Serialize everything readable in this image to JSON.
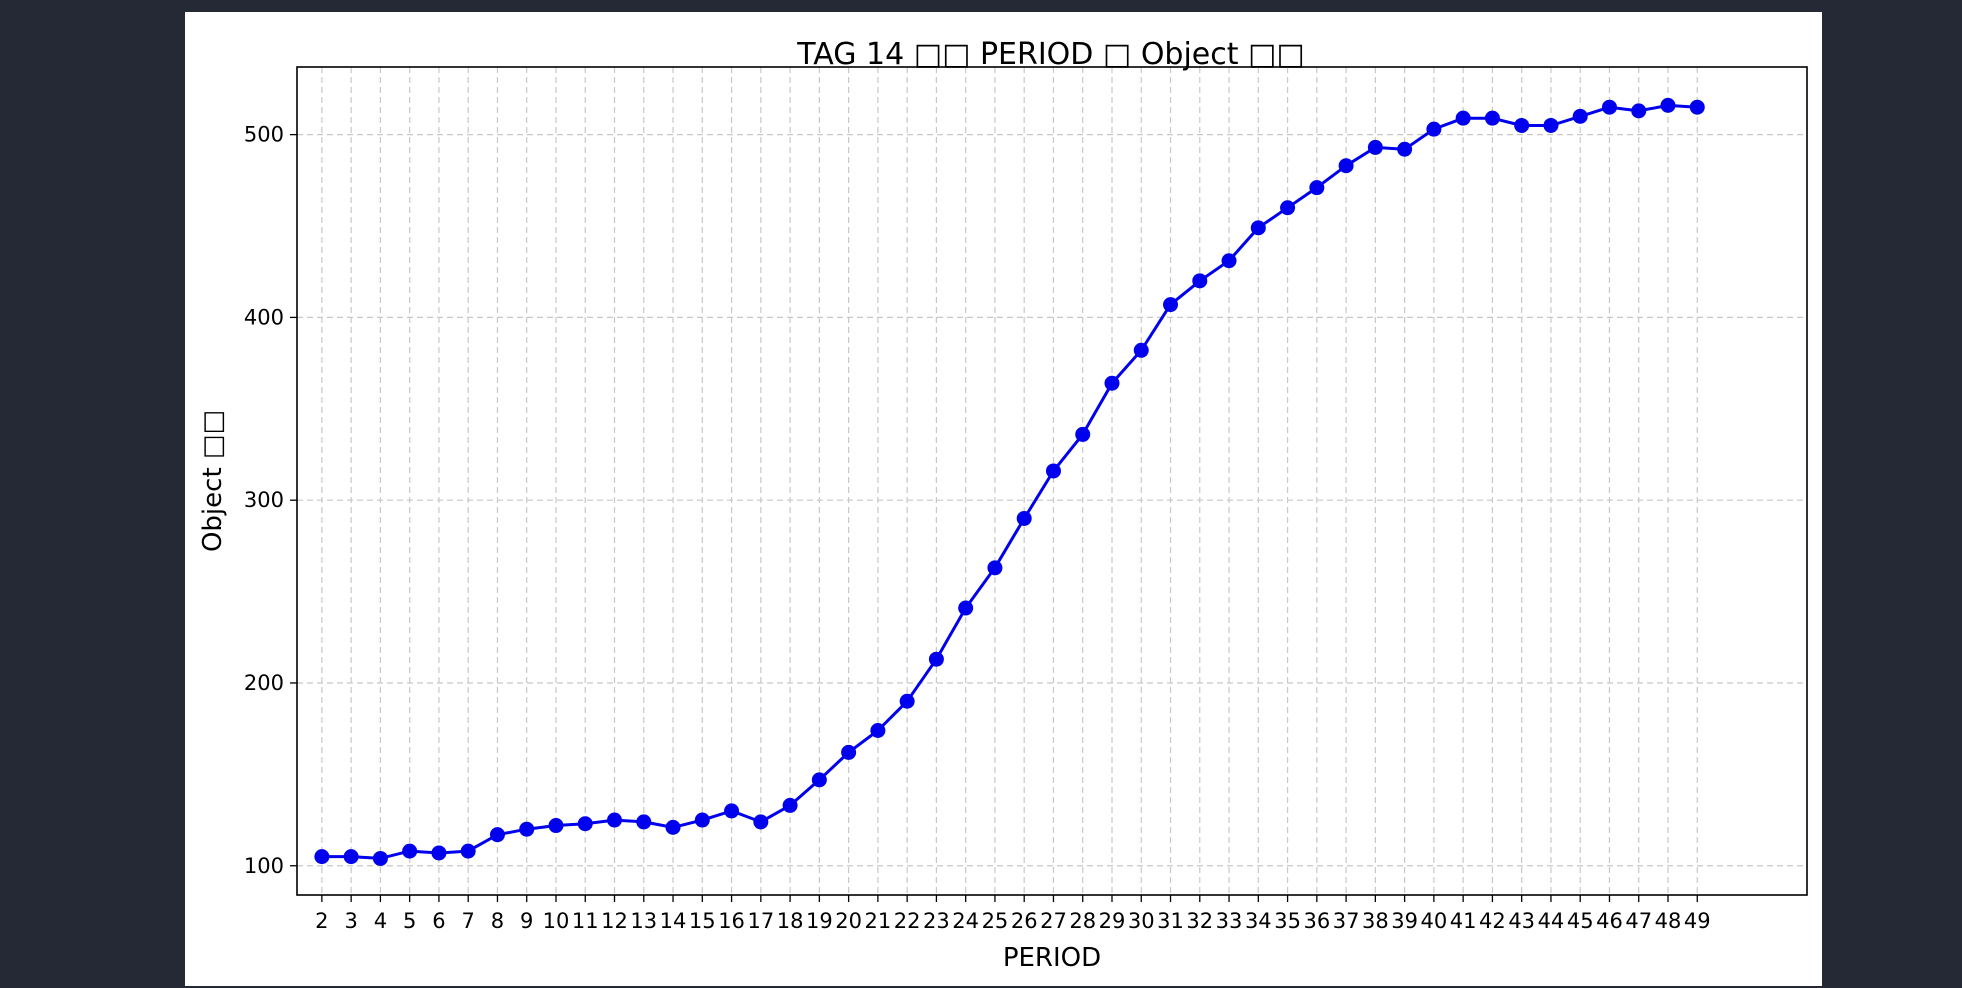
{
  "chart_data": {
    "type": "line",
    "title": "TAG 14 □□ PERIOD □ Object □□",
    "xlabel": "PERIOD",
    "ylabel": "Object □□",
    "x": [
      2,
      3,
      4,
      5,
      6,
      7,
      8,
      9,
      10,
      11,
      12,
      13,
      14,
      15,
      16,
      17,
      18,
      19,
      20,
      21,
      22,
      23,
      24,
      25,
      26,
      27,
      28,
      29,
      30,
      31,
      32,
      33,
      34,
      35,
      36,
      37,
      38,
      39,
      40,
      41,
      42,
      43,
      44,
      45,
      46,
      47,
      48,
      49
    ],
    "series": [
      {
        "values": [
          105,
          105,
          104,
          108,
          107,
          108,
          117,
          120,
          122,
          123,
          125,
          124,
          121,
          125,
          130,
          124,
          133,
          147,
          162,
          174,
          190,
          213,
          241,
          263,
          290,
          316,
          336,
          364,
          382,
          407,
          420,
          431,
          449,
          460,
          471,
          483,
          493,
          492,
          503,
          509,
          509,
          505,
          505,
          510,
          515,
          513,
          516,
          515
        ],
        "color": "#0000ee"
      }
    ],
    "yticks": [
      100,
      200,
      300,
      400,
      500
    ],
    "ylim": [
      84,
      537
    ],
    "xlim": [
      -0.85,
      50.75
    ],
    "grid": true,
    "grid_style": "dashed",
    "legend": false,
    "colors": {
      "line": "#0000ee",
      "grid": "#c8c8c8",
      "background": "#252935",
      "panel": "#ffffff"
    }
  }
}
